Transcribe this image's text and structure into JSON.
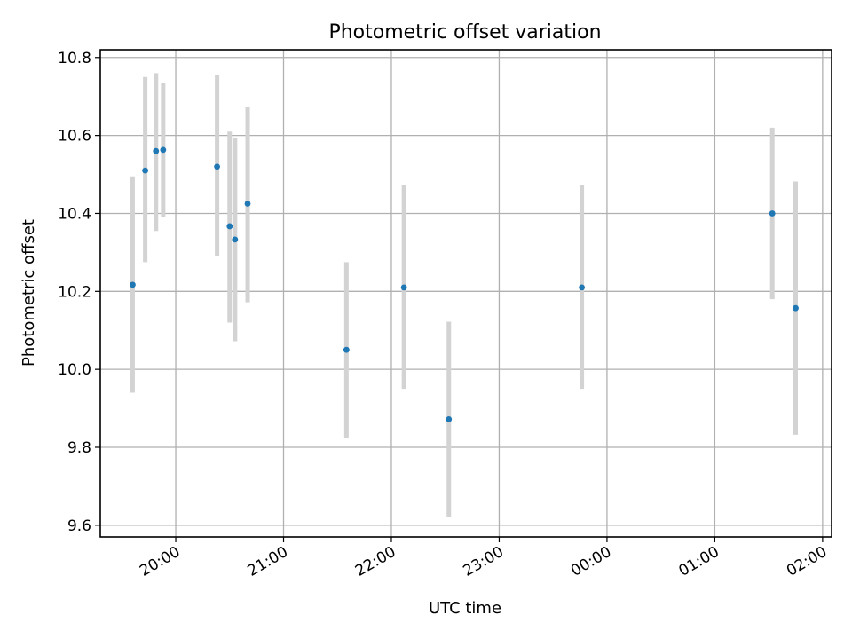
{
  "chart_data": {
    "type": "scatter",
    "title": "Photometric offset variation",
    "xlabel": "UTC time",
    "ylabel": "Photometric offset",
    "grid": true,
    "legend": "none",
    "xlim": [
      "19:18",
      "26:05"
    ],
    "ylim": [
      9.57,
      10.82
    ],
    "x_ticks": [
      "20:00",
      "21:00",
      "22:00",
      "23:00",
      "00:00",
      "01:00",
      "02:00"
    ],
    "y_ticks": [
      "9.6",
      "9.8",
      "10.0",
      "10.2",
      "10.4",
      "10.6",
      "10.8"
    ],
    "x_tick_hours": [
      20,
      21,
      22,
      23,
      24,
      25,
      26
    ],
    "y_tick_values": [
      9.6,
      9.8,
      10.0,
      10.2,
      10.4,
      10.6,
      10.8
    ],
    "marker_color": "#1f77b4",
    "errorbar_color": "#d3d3d3",
    "points": [
      {
        "time": "19:36",
        "y": 10.217,
        "ylow": 9.94,
        "yhigh": 10.495
      },
      {
        "time": "19:43",
        "y": 10.51,
        "ylow": 10.275,
        "yhigh": 10.75
      },
      {
        "time": "19:49",
        "y": 10.56,
        "ylow": 10.355,
        "yhigh": 10.76
      },
      {
        "time": "19:53",
        "y": 10.563,
        "ylow": 10.39,
        "yhigh": 10.735
      },
      {
        "time": "20:23",
        "y": 10.52,
        "ylow": 10.29,
        "yhigh": 10.755
      },
      {
        "time": "20:30",
        "y": 10.367,
        "ylow": 10.12,
        "yhigh": 10.61
      },
      {
        "time": "20:33",
        "y": 10.333,
        "ylow": 10.072,
        "yhigh": 10.595
      },
      {
        "time": "20:40",
        "y": 10.425,
        "ylow": 10.172,
        "yhigh": 10.672
      },
      {
        "time": "21:35",
        "y": 10.05,
        "ylow": 9.825,
        "yhigh": 10.275
      },
      {
        "time": "22:07",
        "y": 10.21,
        "ylow": 9.95,
        "yhigh": 10.472
      },
      {
        "time": "22:32",
        "y": 9.872,
        "ylow": 9.622,
        "yhigh": 10.122
      },
      {
        "time": "23:46",
        "y": 10.21,
        "ylow": 9.95,
        "yhigh": 10.472
      },
      {
        "time": "01:32",
        "y": 10.4,
        "ylow": 10.18,
        "yhigh": 10.62
      },
      {
        "time": "01:45",
        "y": 10.157,
        "ylow": 9.832,
        "yhigh": 10.482
      }
    ]
  }
}
